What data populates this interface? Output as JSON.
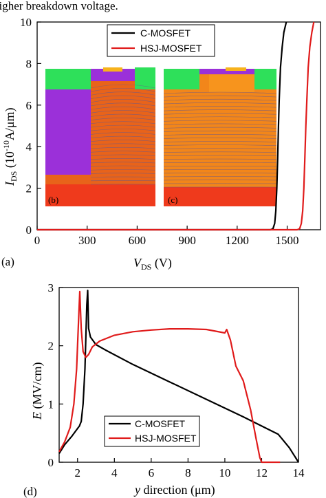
{
  "caption_fragment": "higher breakdown voltage.",
  "colors": {
    "c_mosfet": "#000000",
    "hsj_mosfet": "#e01b1b"
  },
  "chart_data": [
    {
      "panel": "(a)",
      "type": "line",
      "xlabel": "V",
      "xlabel_sub": "DS",
      "xlabel_unit": " (V)",
      "ylabel": "I",
      "ylabel_sub": "DS",
      "ylabel_unit": " (10",
      "ylabel_exp": "-10",
      "ylabel_tail": "A/μm)",
      "xlim": [
        0,
        1700
      ],
      "ylim": [
        0,
        10
      ],
      "xticks": [
        0,
        300,
        600,
        900,
        1200,
        1500
      ],
      "yticks": [
        0,
        2,
        4,
        6,
        8,
        10
      ],
      "legend": [
        "C-MOSFET",
        "HSJ-MOSFET"
      ],
      "legend_position": "top-center",
      "series": [
        {
          "name": "C-MOSFET",
          "x": [
            0,
            1400,
            1415,
            1425,
            1432,
            1438,
            1443,
            1448,
            1452,
            1460,
            1470,
            1480,
            1495
          ],
          "y": [
            0,
            0,
            0.05,
            0.3,
            0.9,
            2.0,
            3.4,
            5.0,
            6.2,
            7.8,
            8.8,
            9.5,
            10
          ]
        },
        {
          "name": "HSJ-MOSFET",
          "x": [
            0,
            1560,
            1575,
            1585,
            1593,
            1600,
            1606,
            1612,
            1618,
            1626,
            1636,
            1648,
            1660
          ],
          "y": [
            0,
            0,
            0.05,
            0.3,
            0.9,
            2.0,
            3.4,
            5.0,
            6.2,
            7.8,
            8.8,
            9.5,
            10
          ]
        }
      ],
      "insets": [
        "(b)",
        "(c)"
      ]
    },
    {
      "panel": "(d)",
      "type": "line",
      "xlabel": "y",
      "xlabel_rest": " direction (μm)",
      "ylabel": "E",
      "ylabel_rest": " (MV/cm)",
      "xlim": [
        1,
        14
      ],
      "ylim": [
        0,
        3
      ],
      "xticks": [
        2,
        4,
        6,
        8,
        10,
        12,
        14
      ],
      "yticks": [
        0,
        1,
        2,
        3
      ],
      "legend": [
        "C-MOSFET",
        "HSJ-MOSFET"
      ],
      "legend_position": "bottom-center",
      "series": [
        {
          "name": "C-MOSFET",
          "x": [
            1.0,
            1.3,
            1.7,
            2.0,
            2.1,
            2.2,
            2.3,
            2.4,
            2.5,
            2.55,
            2.6,
            2.7,
            3.0,
            3.5,
            5,
            7,
            9,
            11,
            12.9,
            13.5,
            14.0
          ],
          "y": [
            0.15,
            0.3,
            0.45,
            0.58,
            0.62,
            0.7,
            1.0,
            1.6,
            2.7,
            2.95,
            2.3,
            2.15,
            2.02,
            1.93,
            1.68,
            1.38,
            1.08,
            0.78,
            0.48,
            0.25,
            0.0
          ]
        },
        {
          "name": "HSJ-MOSFET",
          "x": [
            1.0,
            1.3,
            1.6,
            1.8,
            1.95,
            2.05,
            2.12,
            2.2,
            2.3,
            2.45,
            2.6,
            2.8,
            3.2,
            4,
            5,
            6,
            7,
            8,
            9,
            10,
            10.1,
            10.3,
            10.6,
            11.0,
            11.4,
            11.7,
            11.9,
            12.0,
            13.0
          ],
          "y": [
            0.18,
            0.35,
            0.6,
            1.0,
            1.6,
            2.4,
            2.93,
            2.3,
            1.9,
            1.8,
            1.85,
            1.98,
            2.08,
            2.18,
            2.24,
            2.27,
            2.29,
            2.29,
            2.28,
            2.22,
            2.28,
            2.1,
            1.65,
            1.4,
            0.9,
            0.4,
            0.08,
            0.0,
            0.0
          ]
        }
      ]
    }
  ]
}
